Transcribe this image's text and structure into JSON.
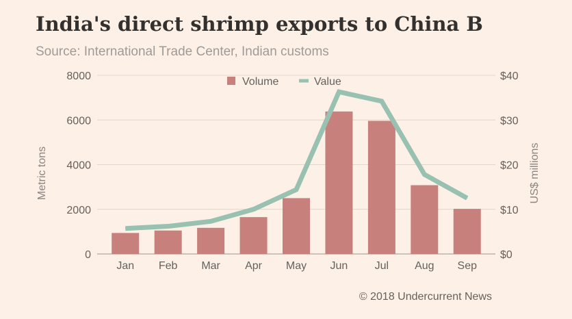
{
  "chart_data": {
    "type": "bar",
    "title": "India's direct shrimp exports to China B",
    "subtitle": "Source: International Trade Center, Indian customs",
    "footer": "© 2018 Undercurrent News",
    "categories": [
      "Jan",
      "Feb",
      "Mar",
      "Apr",
      "May",
      "Jun",
      "Jul",
      "Aug",
      "Sep"
    ],
    "series": [
      {
        "name": "Volume",
        "type": "bar",
        "axis": "left",
        "color": "#c8807c",
        "values": [
          940,
          1050,
          1170,
          1650,
          2500,
          6380,
          5960,
          3080,
          2020
        ]
      },
      {
        "name": "Value",
        "type": "line",
        "axis": "right",
        "color": "#98c1b1",
        "values": [
          5.7,
          6.2,
          7.3,
          10.0,
          14.4,
          36.3,
          34.2,
          17.8,
          12.5
        ]
      }
    ],
    "ylabel_left": "Metric tons",
    "ylabel_right": "US$ millions",
    "ylim_left": [
      0,
      8000
    ],
    "ylim_right": [
      0,
      40
    ],
    "yticks_left": [
      "0",
      "2000",
      "4000",
      "6000",
      "8000"
    ],
    "yticks_right": [
      "$0",
      "$10",
      "$20",
      "$30",
      "$40"
    ],
    "grid": true,
    "legend_position": "top-center"
  }
}
